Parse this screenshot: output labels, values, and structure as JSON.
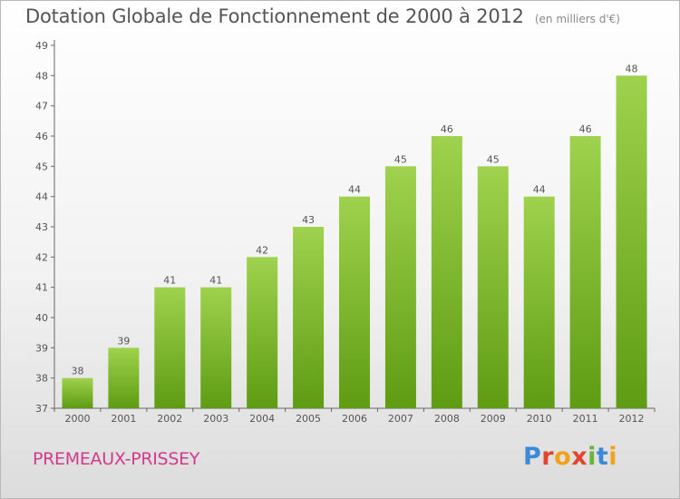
{
  "header": {
    "title": "Dotation Globale de Fonctionnement de 2000 à 2012",
    "subtitle": "(en milliers d'€)"
  },
  "footer": {
    "commune": "PREMEAUX-PRISSEY",
    "logo_letters": [
      "P",
      "r",
      "o",
      "x",
      "i",
      "t",
      "i"
    ]
  },
  "colors": {
    "bar_top": "#9fd24e",
    "bar_bottom": "#5e9c12",
    "commune": "#d23a8c"
  },
  "chart_data": {
    "type": "bar",
    "title": "Dotation Globale de Fonctionnement de 2000 à 2012",
    "subtitle": "(en milliers d'€)",
    "categories": [
      "2000",
      "2001",
      "2002",
      "2003",
      "2004",
      "2005",
      "2006",
      "2007",
      "2008",
      "2009",
      "2010",
      "2011",
      "2012"
    ],
    "values": [
      38,
      39,
      41,
      41,
      42,
      43,
      44,
      45,
      46,
      45,
      44,
      46,
      48
    ],
    "data_labels": [
      "38",
      "39",
      "41",
      "41",
      "42",
      "43",
      "44",
      "45",
      "46",
      "45",
      "44",
      "46",
      "48"
    ],
    "yticks": [
      37,
      38,
      39,
      40,
      41,
      42,
      43,
      44,
      45,
      46,
      47,
      48,
      49
    ],
    "ylim": [
      37,
      49
    ],
    "grid": false,
    "legend": "none"
  }
}
